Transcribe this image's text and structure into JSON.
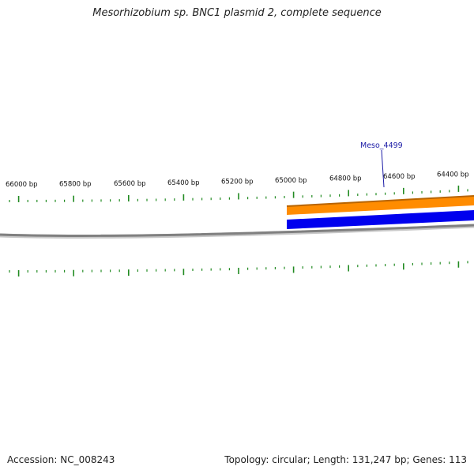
{
  "title": "Mesorhizobium sp. BNC1 plasmid 2, complete sequence",
  "accession_text": "Accession: NC_008243",
  "summary_text": "Topology: circular; Length: 131,247 bp; Genes: 113",
  "gene": {
    "label": "Meso_4499"
  },
  "position_labels": [
    "66000 bp",
    "65800 bp",
    "65600 bp",
    "65400 bp",
    "65200 bp",
    "65000 bp",
    "64800 bp",
    "64600 bp",
    "64400 bp"
  ],
  "colors": {
    "backbone": "#808080",
    "feature_orange": "#ff8c00",
    "feature_orange_edge": "#b86400",
    "feature_blue": "#0000ee",
    "tick": "#228b22",
    "gene_label": "#1a1aa6"
  }
}
